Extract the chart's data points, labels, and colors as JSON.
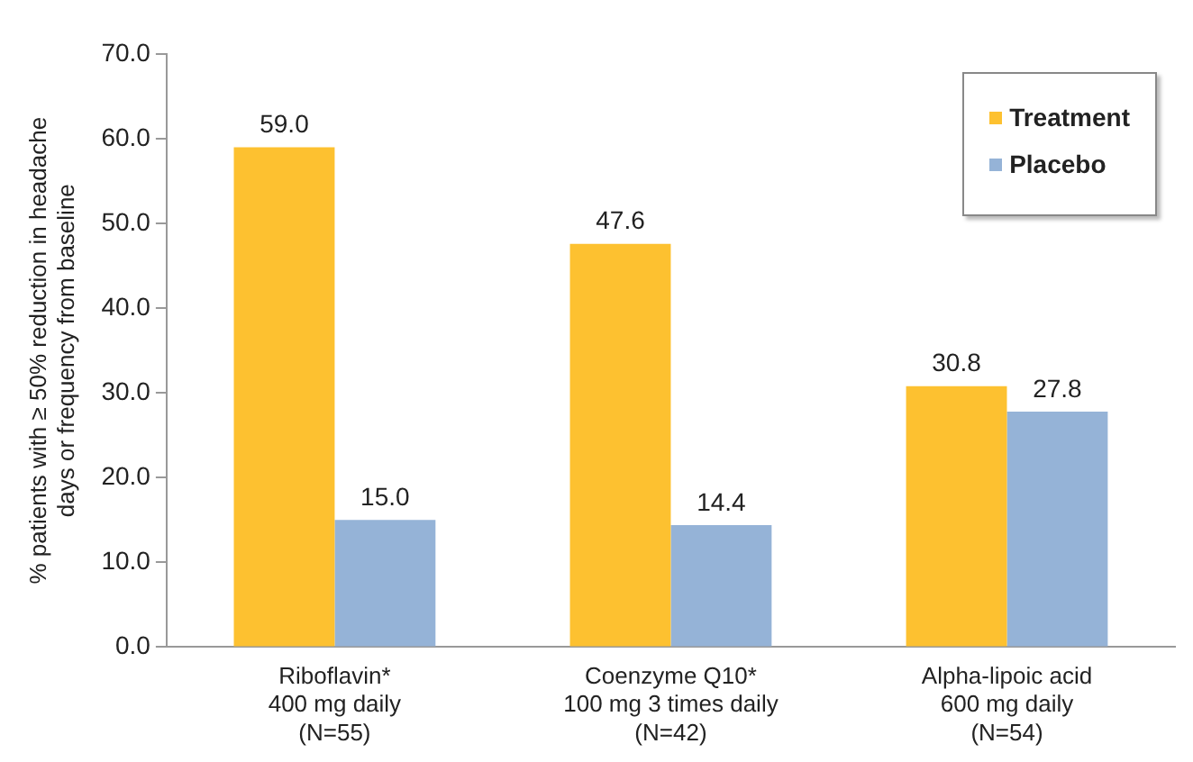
{
  "chart_data": {
    "type": "bar",
    "ylabel": "% patients with ≥ 50% reduction in headache\ndays or frequency from baseline",
    "categories": [
      "Riboflavin*\n400 mg daily\n(N=55)",
      "Coenzyme Q10*\n100 mg 3 times daily\n(N=42)",
      "Alpha-lipoic acid\n600 mg daily\n(N=54)"
    ],
    "series": [
      {
        "name": "Treatment",
        "color": "#fdc130",
        "values": [
          59.0,
          47.6,
          30.8
        ],
        "value_labels": [
          "59.0",
          "47.6",
          "30.8"
        ]
      },
      {
        "name": "Placebo",
        "color": "#95b3d7",
        "values": [
          15.0,
          14.4,
          27.8
        ],
        "value_labels": [
          "15.0",
          "14.4",
          "27.8"
        ]
      }
    ],
    "ylim": [
      0,
      70
    ],
    "yticks": [
      {
        "value": 0,
        "label": "0.0"
      },
      {
        "value": 10,
        "label": "10.0"
      },
      {
        "value": 20,
        "label": "20.0"
      },
      {
        "value": 30,
        "label": "30.0"
      },
      {
        "value": 40,
        "label": "40.0"
      },
      {
        "value": 50,
        "label": "50.0"
      },
      {
        "value": 60,
        "label": "60.0"
      },
      {
        "value": 70,
        "label": "70.0"
      }
    ],
    "grid": false,
    "legend": "top right"
  }
}
